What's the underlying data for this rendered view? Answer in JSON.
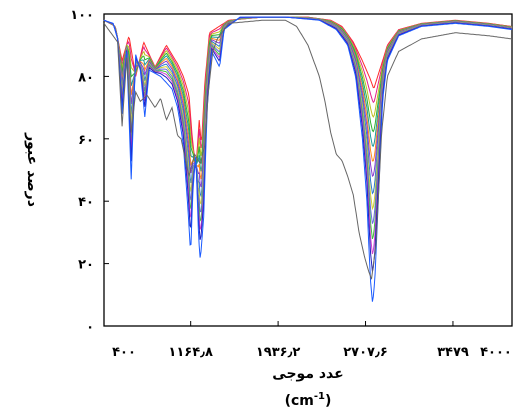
{
  "chart_data": {
    "type": "line",
    "title": "",
    "xlabel": "عدد موجی",
    "xlabel_unit": "(cm",
    "xlabel_unit_sup": "-1",
    "xlabel_unit_close": ")",
    "ylabel": "درصد عبور",
    "xlim": [
      400,
      4000
    ],
    "ylim": [
      0,
      100
    ],
    "x_ticks": [
      {
        "value": 400,
        "label": "۴۰۰"
      },
      {
        "value": 1164.8,
        "label": "۱۱۶۴٫۸"
      },
      {
        "value": 1936.2,
        "label": "۱۹۳۶٫۲"
      },
      {
        "value": 2707.6,
        "label": "۲۷۰۷٫۶"
      },
      {
        "value": 3479,
        "label": "۳۴۷۹"
      },
      {
        "value": 4000,
        "label": "۴۰۰۰"
      }
    ],
    "y_ticks": [
      {
        "value": 0,
        "label": "۰"
      },
      {
        "value": 20,
        "label": "۲۰"
      },
      {
        "value": 40,
        "label": "۴۰"
      },
      {
        "value": 60,
        "label": "۶۰"
      },
      {
        "value": 80,
        "label": "۸۰"
      },
      {
        "value": 100,
        "label": "۱۰۰"
      }
    ],
    "grid": false,
    "legend": "none",
    "series": [
      {
        "color": "#ff2a2a",
        "depth": 0.0
      },
      {
        "color": "#e0208a",
        "depth": 0.07
      },
      {
        "color": "#c0c020",
        "depth": 0.14
      },
      {
        "color": "#30b030",
        "depth": 0.21
      },
      {
        "color": "#1a9a9a",
        "depth": 0.28
      },
      {
        "color": "#ff8c1a",
        "depth": 0.35
      },
      {
        "color": "#8a3ad0",
        "depth": 0.42
      },
      {
        "color": "#2a7ad0",
        "depth": 0.5
      },
      {
        "color": "#d0d030",
        "depth": 0.57
      },
      {
        "color": "#6a6ae0",
        "depth": 0.64
      },
      {
        "color": "#40c040",
        "depth": 0.71
      },
      {
        "color": "#d040d0",
        "depth": 0.78
      },
      {
        "color": "#2020c0",
        "depth": 0.86
      },
      {
        "color": "#1a5aff",
        "depth": 1.0
      },
      {
        "color": "#666666",
        "depth": 1.15,
        "broad": true
      }
    ],
    "base_line": [
      [
        400,
        98
      ],
      [
        500,
        96
      ],
      [
        560,
        85
      ],
      [
        620,
        93
      ],
      [
        680,
        80
      ],
      [
        750,
        91
      ],
      [
        850,
        83
      ],
      [
        950,
        90
      ],
      [
        1050,
        84
      ],
      [
        1100,
        80
      ],
      [
        1150,
        74
      ],
      [
        1180,
        60
      ],
      [
        1210,
        50
      ],
      [
        1240,
        66
      ],
      [
        1260,
        58
      ],
      [
        1290,
        78
      ],
      [
        1330,
        94
      ],
      [
        1500,
        98
      ],
      [
        1800,
        99
      ],
      [
        2000,
        99
      ],
      [
        2200,
        99
      ],
      [
        2400,
        98
      ],
      [
        2500,
        96
      ],
      [
        2600,
        91
      ],
      [
        2680,
        85
      ],
      [
        2740,
        80
      ],
      [
        2780,
        76
      ],
      [
        2850,
        84
      ],
      [
        2900,
        90
      ],
      [
        3000,
        95
      ],
      [
        3200,
        97
      ],
      [
        3500,
        98
      ],
      [
        3800,
        97
      ],
      [
        4000,
        96
      ]
    ],
    "deep_line": [
      [
        400,
        98
      ],
      [
        480,
        97
      ],
      [
        520,
        92
      ],
      [
        560,
        68
      ],
      [
        600,
        88
      ],
      [
        640,
        47
      ],
      [
        680,
        87
      ],
      [
        720,
        82
      ],
      [
        760,
        67
      ],
      [
        800,
        82
      ],
      [
        900,
        80
      ],
      [
        1000,
        76
      ],
      [
        1050,
        70
      ],
      [
        1100,
        58
      ],
      [
        1140,
        38
      ],
      [
        1165,
        23
      ],
      [
        1185,
        44
      ],
      [
        1210,
        55
      ],
      [
        1235,
        28
      ],
      [
        1250,
        21
      ],
      [
        1280,
        35
      ],
      [
        1310,
        70
      ],
      [
        1350,
        88
      ],
      [
        1420,
        83
      ],
      [
        1460,
        95
      ],
      [
        1600,
        99
      ],
      [
        1800,
        99
      ],
      [
        2000,
        99
      ],
      [
        2300,
        98
      ],
      [
        2450,
        95
      ],
      [
        2550,
        90
      ],
      [
        2620,
        80
      ],
      [
        2680,
        60
      ],
      [
        2720,
        40
      ],
      [
        2750,
        15
      ],
      [
        2770,
        7
      ],
      [
        2790,
        15
      ],
      [
        2820,
        40
      ],
      [
        2860,
        73
      ],
      [
        2900,
        85
      ],
      [
        3000,
        93
      ],
      [
        3200,
        96
      ],
      [
        3500,
        97
      ],
      [
        3800,
        96
      ],
      [
        4000,
        95
      ]
    ],
    "broad_line": [
      [
        400,
        97
      ],
      [
        520,
        91
      ],
      [
        560,
        64
      ],
      [
        600,
        86
      ],
      [
        640,
        62
      ],
      [
        680,
        75
      ],
      [
        720,
        72
      ],
      [
        780,
        74
      ],
      [
        850,
        70
      ],
      [
        900,
        73
      ],
      [
        950,
        66
      ],
      [
        1000,
        70
      ],
      [
        1050,
        61
      ],
      [
        1080,
        60
      ],
      [
        1120,
        53
      ],
      [
        1150,
        48
      ],
      [
        1200,
        55
      ],
      [
        1250,
        52
      ],
      [
        1290,
        58
      ],
      [
        1320,
        75
      ],
      [
        1360,
        88
      ],
      [
        1400,
        92
      ],
      [
        1500,
        97
      ],
      [
        1800,
        98
      ],
      [
        2000,
        98
      ],
      [
        2100,
        96
      ],
      [
        2200,
        90
      ],
      [
        2300,
        80
      ],
      [
        2350,
        72
      ],
      [
        2400,
        62
      ],
      [
        2450,
        55
      ],
      [
        2500,
        53
      ],
      [
        2550,
        48
      ],
      [
        2600,
        42
      ],
      [
        2650,
        30
      ],
      [
        2700,
        22
      ],
      [
        2740,
        17
      ],
      [
        2760,
        15
      ],
      [
        2800,
        26
      ],
      [
        2850,
        62
      ],
      [
        2900,
        80
      ],
      [
        3000,
        88
      ],
      [
        3200,
        92
      ],
      [
        3500,
        94
      ],
      [
        3800,
        93
      ],
      [
        4000,
        92
      ]
    ]
  }
}
